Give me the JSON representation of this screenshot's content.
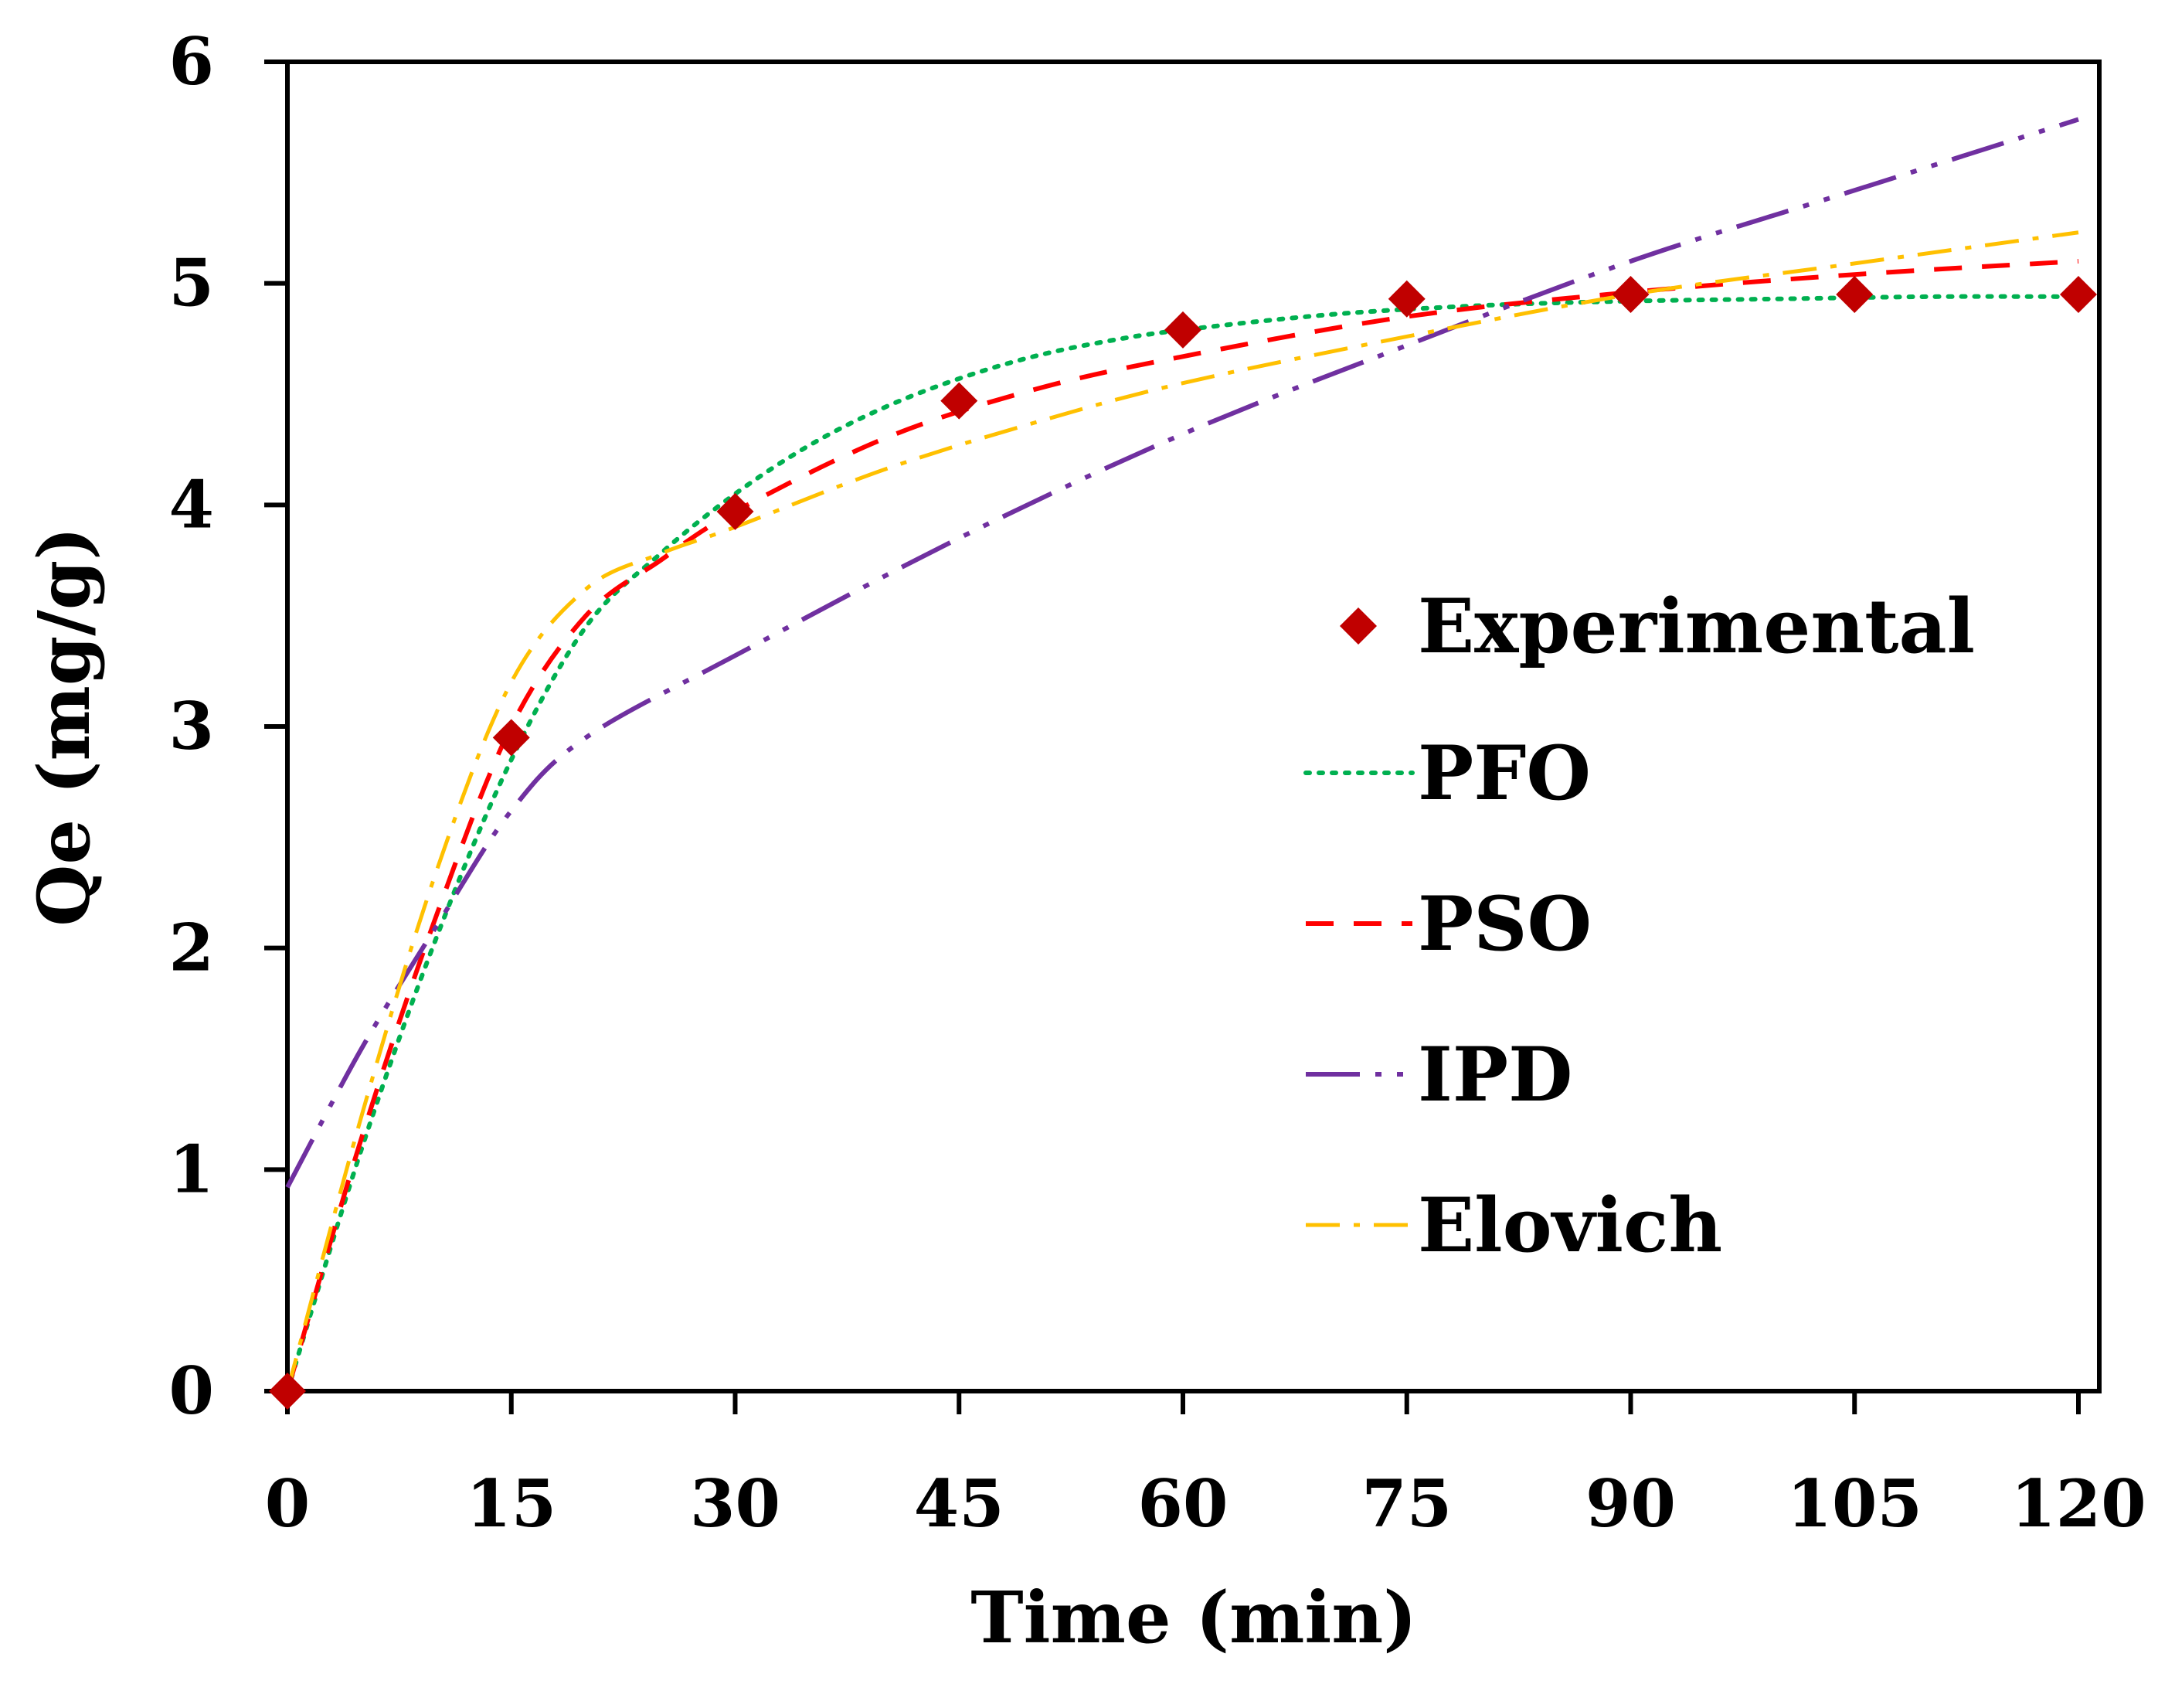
{
  "chart_data": {
    "type": "line",
    "title": "",
    "xlabel": "Time (min)",
    "ylabel": "Qe (mg/g)",
    "xlim": [
      0,
      120
    ],
    "ylim": [
      0,
      6
    ],
    "xticks": [
      0,
      15,
      30,
      45,
      60,
      75,
      90,
      105,
      120
    ],
    "yticks": [
      0,
      1,
      2,
      3,
      4,
      5,
      6
    ],
    "grid": false,
    "legend_position": "right",
    "colors": {
      "experimental": "#c00000",
      "pfo": "#00b050",
      "pso": "#ff0000",
      "ipd": "#7030a0",
      "elovich": "#ffc000"
    },
    "series": [
      {
        "name": "Experimental",
        "style": "markers",
        "x": [
          0,
          15,
          30,
          45,
          60,
          75,
          90,
          105,
          120
        ],
        "y": [
          0,
          2.95,
          3.97,
          4.47,
          4.79,
          4.93,
          4.95,
          4.95,
          4.95
        ]
      },
      {
        "name": "PFO",
        "style": "dotted",
        "x": [
          0,
          5,
          10,
          15,
          20,
          25,
          30,
          35,
          40,
          45,
          50,
          55,
          60,
          70,
          80,
          90,
          100,
          110,
          120
        ],
        "y": [
          0,
          1.1,
          2.05,
          2.85,
          3.45,
          3.78,
          4.05,
          4.27,
          4.44,
          4.57,
          4.67,
          4.74,
          4.79,
          4.86,
          4.9,
          4.92,
          4.93,
          4.94,
          4.94
        ]
      },
      {
        "name": "PSO",
        "style": "dashed",
        "x": [
          0,
          5,
          10,
          15,
          20,
          25,
          30,
          40,
          50,
          60,
          75,
          90,
          105,
          120
        ],
        "y": [
          0,
          1.15,
          2.15,
          3.0,
          3.5,
          3.75,
          3.97,
          4.3,
          4.52,
          4.67,
          4.85,
          4.96,
          5.04,
          5.1
        ]
      },
      {
        "name": "IPD",
        "style": "dash-dot-dot",
        "x": [
          0,
          5,
          10,
          15,
          20,
          30,
          45,
          60,
          75,
          90,
          105,
          120
        ],
        "y": [
          0.92,
          1.55,
          2.1,
          2.62,
          2.95,
          3.32,
          3.85,
          4.32,
          4.72,
          5.1,
          5.42,
          5.74
        ]
      },
      {
        "name": "Elovich",
        "style": "dash-dot",
        "x": [
          0,
          5,
          10,
          15,
          20,
          25,
          30,
          40,
          50,
          60,
          75,
          90,
          105,
          120
        ],
        "y": [
          0,
          1.25,
          2.35,
          3.2,
          3.62,
          3.78,
          3.9,
          4.16,
          4.37,
          4.55,
          4.76,
          4.95,
          5.09,
          5.23
        ]
      }
    ]
  }
}
